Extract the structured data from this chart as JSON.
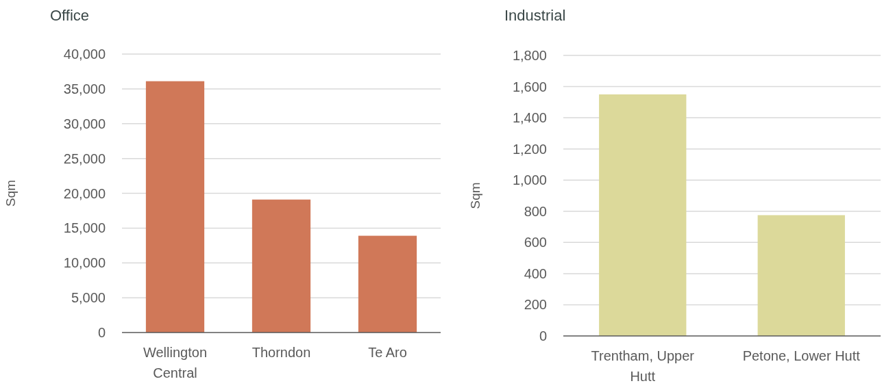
{
  "chart_data": [
    {
      "type": "bar",
      "title": "Office",
      "ylabel": "Sqm",
      "categories": [
        "Wellington Central",
        "Thorndon",
        "Te Aro"
      ],
      "values": [
        36100,
        19100,
        13900
      ],
      "color": "#d07858",
      "ylim": [
        0,
        40000
      ],
      "yticks": [
        {
          "value": 0,
          "label": "0"
        },
        {
          "value": 5000,
          "label": "5,000"
        },
        {
          "value": 10000,
          "label": "10,000"
        },
        {
          "value": 15000,
          "label": "15,000"
        },
        {
          "value": 20000,
          "label": "20,000"
        },
        {
          "value": 25000,
          "label": "25,000"
        },
        {
          "value": 30000,
          "label": "30,000"
        },
        {
          "value": 35000,
          "label": "35,000"
        },
        {
          "value": 40000,
          "label": "40,000"
        }
      ],
      "grid": "y"
    },
    {
      "type": "bar",
      "title": "Industrial",
      "ylabel": "Sqm",
      "categories": [
        "Trentham, Upper Hutt",
        "Petone, Lower Hutt"
      ],
      "values": [
        1550,
        775
      ],
      "color": "#dcd99a",
      "ylim": [
        0,
        1800
      ],
      "yticks": [
        {
          "value": 0,
          "label": "0"
        },
        {
          "value": 200,
          "label": "200"
        },
        {
          "value": 400,
          "label": "400"
        },
        {
          "value": 600,
          "label": "600"
        },
        {
          "value": 800,
          "label": "800"
        },
        {
          "value": 1000,
          "label": "1,000"
        },
        {
          "value": 1200,
          "label": "1,200"
        },
        {
          "value": 1400,
          "label": "1,400"
        },
        {
          "value": 1600,
          "label": "1,600"
        },
        {
          "value": 1800,
          "label": "1,800"
        }
      ],
      "grid": "y"
    }
  ]
}
